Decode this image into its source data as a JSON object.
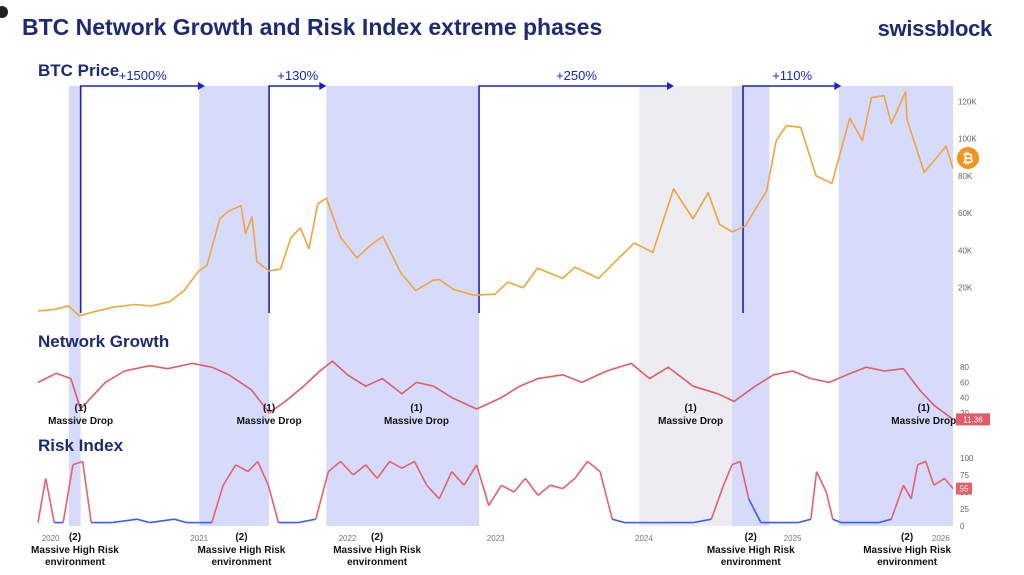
{
  "header": {
    "title": "BTC Network Growth and Risk Index extreme phases",
    "brand": "swissblock",
    "colors": {
      "title": "#1e2a78",
      "accent_blue": "#1a22c8"
    }
  },
  "chart_data": {
    "type": "line",
    "x_range": [
      "2019-12-01",
      "2026-01-31"
    ],
    "years": [
      {
        "label": "2020",
        "date": "2020-01-01"
      },
      {
        "label": "2021",
        "date": "2021-01-01"
      },
      {
        "label": "2022",
        "date": "2022-01-01"
      },
      {
        "label": "2023",
        "date": "2023-01-01"
      },
      {
        "label": "2024",
        "date": "2024-01-01"
      },
      {
        "label": "2025",
        "date": "2025-01-01"
      },
      {
        "label": "2026",
        "date": "2026-01-01"
      }
    ],
    "shaded_periods": [
      {
        "start": "2020-02-15",
        "end": "2020-03-15",
        "color": "#d6dbfb"
      },
      {
        "start": "2021-01-01",
        "end": "2021-06-22",
        "color": "#d6dbfb"
      },
      {
        "start": "2021-11-10",
        "end": "2022-11-21",
        "color": "#d6dbfb"
      },
      {
        "start": "2023-12-20",
        "end": "2024-08-05",
        "color": "#ececf1"
      },
      {
        "start": "2024-08-05",
        "end": "2024-11-05",
        "color": "#d6dbfb"
      },
      {
        "start": "2025-04-25",
        "end": "2026-01-31",
        "color": "#d6dbfb"
      }
    ],
    "gains": [
      {
        "label": "+1500%",
        "start": "2020-03-15",
        "end": "2021-01-15"
      },
      {
        "label": "+130%",
        "start": "2021-06-22",
        "end": "2021-11-10"
      },
      {
        "label": "+250%",
        "start": "2022-11-21",
        "end": "2024-03-15"
      },
      {
        "label": "+110%",
        "start": "2024-09-01",
        "end": "2025-05-01"
      }
    ],
    "price": {
      "title": "BTC Price",
      "color": "#f0a53a",
      "yticks": [
        {
          "v": 20000,
          "label": "20K"
        },
        {
          "v": 40000,
          "label": "40K"
        },
        {
          "v": 60000,
          "label": "60K"
        },
        {
          "v": 80000,
          "label": "80K"
        },
        {
          "v": 100000,
          "label": "100K"
        },
        {
          "v": 120000,
          "label": "120K"
        }
      ],
      "ylim": [
        0,
        125000
      ],
      "points": [
        [
          "2019-12-01",
          7500
        ],
        [
          "2020-01-15",
          8500
        ],
        [
          "2020-02-13",
          10300
        ],
        [
          "2020-03-12",
          5000
        ],
        [
          "2020-04-15",
          7000
        ],
        [
          "2020-06-01",
          9500
        ],
        [
          "2020-07-27",
          11000
        ],
        [
          "2020-09-05",
          10200
        ],
        [
          "2020-10-20",
          12500
        ],
        [
          "2020-11-25",
          18500
        ],
        [
          "2020-12-31",
          29000
        ],
        [
          "2021-01-20",
          32000
        ],
        [
          "2021-02-21",
          57000
        ],
        [
          "2021-03-13",
          61000
        ],
        [
          "2021-04-14",
          64000
        ],
        [
          "2021-04-25",
          49000
        ],
        [
          "2021-05-11",
          58000
        ],
        [
          "2021-05-23",
          34000
        ],
        [
          "2021-06-22",
          29000
        ],
        [
          "2021-07-20",
          30000
        ],
        [
          "2021-08-15",
          47000
        ],
        [
          "2021-09-07",
          52000
        ],
        [
          "2021-09-28",
          41000
        ],
        [
          "2021-10-20",
          65000
        ],
        [
          "2021-11-10",
          68000
        ],
        [
          "2021-12-15",
          47000
        ],
        [
          "2022-01-24",
          36000
        ],
        [
          "2022-02-28",
          43000
        ],
        [
          "2022-03-29",
          47500
        ],
        [
          "2022-05-12",
          28000
        ],
        [
          "2022-06-18",
          18500
        ],
        [
          "2022-07-30",
          24000
        ],
        [
          "2022-08-15",
          24400
        ],
        [
          "2022-09-20",
          19000
        ],
        [
          "2022-11-09",
          16000
        ],
        [
          "2022-12-30",
          16500
        ],
        [
          "2023-01-31",
          23000
        ],
        [
          "2023-03-10",
          20000
        ],
        [
          "2023-04-14",
          30500
        ],
        [
          "2023-06-15",
          25000
        ],
        [
          "2023-07-15",
          31000
        ],
        [
          "2023-09-11",
          25000
        ],
        [
          "2023-10-25",
          34500
        ],
        [
          "2023-12-08",
          44000
        ],
        [
          "2024-01-23",
          39000
        ],
        [
          "2024-03-14",
          73000
        ],
        [
          "2024-05-01",
          57000
        ],
        [
          "2024-06-07",
          71000
        ],
        [
          "2024-07-05",
          54000
        ],
        [
          "2024-08-05",
          50000
        ],
        [
          "2024-09-06",
          53000
        ],
        [
          "2024-10-29",
          72000
        ],
        [
          "2024-11-22",
          99000
        ],
        [
          "2024-12-17",
          107000
        ],
        [
          "2025-01-21",
          106000
        ],
        [
          "2025-02-28",
          80000
        ],
        [
          "2025-04-08",
          76000
        ],
        [
          "2025-05-22",
          111000
        ],
        [
          "2025-06-22",
          99000
        ],
        [
          "2025-07-14",
          122000
        ],
        [
          "2025-08-14",
          123000
        ],
        [
          "2025-09-01",
          108000
        ],
        [
          "2025-10-06",
          125000
        ],
        [
          "2025-10-10",
          110000
        ],
        [
          "2025-11-21",
          82000
        ],
        [
          "2025-12-15",
          88000
        ],
        [
          "2026-01-14",
          96000
        ],
        [
          "2026-01-31",
          84000
        ]
      ]
    },
    "network_growth": {
      "title": "Network Growth",
      "color": "#e05c68",
      "yticks": [
        20,
        40,
        60,
        80
      ],
      "ylim": [
        0,
        100
      ],
      "current_value": "11.36",
      "annotations": [
        {
          "num": "(1)",
          "label": "Massive Drop",
          "date": "2020-03-15"
        },
        {
          "num": "(1)",
          "label": "Massive Drop",
          "date": "2021-06-22"
        },
        {
          "num": "(1)",
          "label": "Massive Drop",
          "date": "2022-06-20"
        },
        {
          "num": "(1)",
          "label": "Massive Drop",
          "date": "2024-04-25"
        },
        {
          "num": "(1)",
          "label": "Massive Drop",
          "date": "2025-11-20"
        }
      ],
      "points": [
        [
          "2019-12-01",
          60
        ],
        [
          "2020-01-15",
          72
        ],
        [
          "2020-02-20",
          65
        ],
        [
          "2020-03-15",
          25
        ],
        [
          "2020-04-10",
          40
        ],
        [
          "2020-05-15",
          60
        ],
        [
          "2020-07-01",
          75
        ],
        [
          "2020-09-01",
          82
        ],
        [
          "2020-10-15",
          78
        ],
        [
          "2020-12-15",
          85
        ],
        [
          "2021-02-01",
          80
        ],
        [
          "2021-03-15",
          70
        ],
        [
          "2021-05-10",
          50
        ],
        [
          "2021-06-22",
          20
        ],
        [
          "2021-08-01",
          35
        ],
        [
          "2021-09-15",
          55
        ],
        [
          "2021-10-25",
          75
        ],
        [
          "2021-11-25",
          88
        ],
        [
          "2022-01-01",
          70
        ],
        [
          "2022-02-15",
          55
        ],
        [
          "2022-03-28",
          65
        ],
        [
          "2022-05-15",
          45
        ],
        [
          "2022-06-20",
          60
        ],
        [
          "2022-08-01",
          55
        ],
        [
          "2022-09-15",
          40
        ],
        [
          "2022-11-15",
          25
        ],
        [
          "2023-01-15",
          40
        ],
        [
          "2023-03-01",
          55
        ],
        [
          "2023-04-15",
          65
        ],
        [
          "2023-06-15",
          70
        ],
        [
          "2023-08-01",
          60
        ],
        [
          "2023-10-01",
          75
        ],
        [
          "2023-12-01",
          85
        ],
        [
          "2024-01-15",
          65
        ],
        [
          "2024-03-01",
          80
        ],
        [
          "2024-05-01",
          55
        ],
        [
          "2024-07-01",
          45
        ],
        [
          "2024-08-10",
          35
        ],
        [
          "2024-10-01",
          55
        ],
        [
          "2024-11-15",
          70
        ],
        [
          "2025-01-01",
          75
        ],
        [
          "2025-02-15",
          65
        ],
        [
          "2025-04-01",
          60
        ],
        [
          "2025-05-15",
          70
        ],
        [
          "2025-07-01",
          80
        ],
        [
          "2025-08-15",
          75
        ],
        [
          "2025-10-01",
          78
        ],
        [
          "2025-11-10",
          50
        ],
        [
          "2025-12-15",
          30
        ],
        [
          "2026-01-31",
          11.36
        ]
      ]
    },
    "risk_index": {
      "title": "Risk Index",
      "color_high": "#e8606c",
      "color_low": "#3d5aff",
      "threshold": 25,
      "yticks": [
        0,
        25,
        50,
        75,
        100
      ],
      "ylim": [
        0,
        100
      ],
      "current_value": "55",
      "annotations": [
        {
          "num": "(2)",
          "label": "Massive High Risk environment",
          "date": "2020-03-01"
        },
        {
          "num": "(2)",
          "label": "Massive High Risk environment",
          "date": "2021-04-15"
        },
        {
          "num": "(2)",
          "label": "Massive High Risk environment",
          "date": "2022-03-15"
        },
        {
          "num": "(2)",
          "label": "Massive High Risk environment",
          "date": "2024-09-20"
        },
        {
          "num": "(2)",
          "label": "Massive High Risk environment",
          "date": "2025-10-10"
        }
      ],
      "points": [
        [
          "2019-12-01",
          5
        ],
        [
          "2019-12-20",
          70
        ],
        [
          "2020-01-10",
          5
        ],
        [
          "2020-02-01",
          5
        ],
        [
          "2020-02-25",
          90
        ],
        [
          "2020-03-20",
          95
        ],
        [
          "2020-04-10",
          5
        ],
        [
          "2020-06-01",
          5
        ],
        [
          "2020-08-01",
          10
        ],
        [
          "2020-09-01",
          5
        ],
        [
          "2020-11-01",
          10
        ],
        [
          "2020-12-01",
          5
        ],
        [
          "2021-01-01",
          5
        ],
        [
          "2021-02-01",
          5
        ],
        [
          "2021-03-01",
          60
        ],
        [
          "2021-04-01",
          90
        ],
        [
          "2021-05-01",
          80
        ],
        [
          "2021-05-25",
          95
        ],
        [
          "2021-06-20",
          60
        ],
        [
          "2021-07-15",
          5
        ],
        [
          "2021-09-01",
          5
        ],
        [
          "2021-10-15",
          10
        ],
        [
          "2021-11-15",
          80
        ],
        [
          "2021-12-15",
          95
        ],
        [
          "2022-01-15",
          75
        ],
        [
          "2022-02-15",
          90
        ],
        [
          "2022-03-15",
          70
        ],
        [
          "2022-04-15",
          95
        ],
        [
          "2022-05-15",
          85
        ],
        [
          "2022-06-15",
          95
        ],
        [
          "2022-07-15",
          60
        ],
        [
          "2022-08-15",
          40
        ],
        [
          "2022-09-15",
          80
        ],
        [
          "2022-10-15",
          60
        ],
        [
          "2022-11-15",
          90
        ],
        [
          "2022-12-15",
          30
        ],
        [
          "2023-01-15",
          60
        ],
        [
          "2023-02-15",
          50
        ],
        [
          "2023-03-15",
          70
        ],
        [
          "2023-04-15",
          45
        ],
        [
          "2023-05-15",
          60
        ],
        [
          "2023-06-15",
          55
        ],
        [
          "2023-07-15",
          70
        ],
        [
          "2023-08-15",
          95
        ],
        [
          "2023-09-15",
          80
        ],
        [
          "2023-10-15",
          10
        ],
        [
          "2023-11-15",
          5
        ],
        [
          "2023-12-15",
          5
        ],
        [
          "2024-01-15",
          5
        ],
        [
          "2024-02-15",
          5
        ],
        [
          "2024-03-15",
          5
        ],
        [
          "2024-05-01",
          5
        ],
        [
          "2024-06-15",
          10
        ],
        [
          "2024-07-15",
          60
        ],
        [
          "2024-08-05",
          90
        ],
        [
          "2024-08-25",
          95
        ],
        [
          "2024-09-15",
          40
        ],
        [
          "2024-10-15",
          5
        ],
        [
          "2024-12-01",
          5
        ],
        [
          "2025-01-15",
          5
        ],
        [
          "2025-02-15",
          10
        ],
        [
          "2025-03-01",
          80
        ],
        [
          "2025-03-25",
          50
        ],
        [
          "2025-04-10",
          10
        ],
        [
          "2025-05-01",
          5
        ],
        [
          "2025-08-01",
          5
        ],
        [
          "2025-09-01",
          10
        ],
        [
          "2025-10-01",
          60
        ],
        [
          "2025-10-20",
          40
        ],
        [
          "2025-11-05",
          90
        ],
        [
          "2025-11-25",
          95
        ],
        [
          "2025-12-15",
          60
        ],
        [
          "2026-01-10",
          70
        ],
        [
          "2026-01-31",
          55
        ]
      ]
    }
  }
}
